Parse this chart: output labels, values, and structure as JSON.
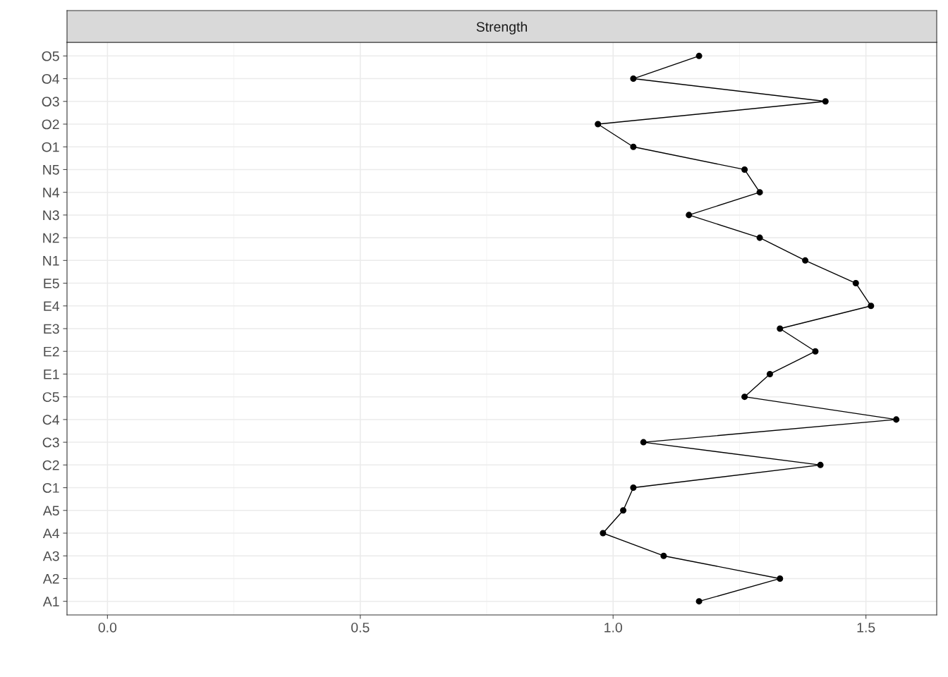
{
  "chart_data": {
    "type": "line",
    "title": "Strength",
    "orientation": "horizontal",
    "categories": [
      "O5",
      "O4",
      "O3",
      "O2",
      "O1",
      "N5",
      "N4",
      "N3",
      "N2",
      "N1",
      "E5",
      "E4",
      "E3",
      "E2",
      "E1",
      "C5",
      "C4",
      "C3",
      "C2",
      "C1",
      "A5",
      "A4",
      "A3",
      "A2",
      "A1"
    ],
    "series": [
      {
        "color": "#000000",
        "values": [
          1.17,
          1.04,
          1.42,
          0.97,
          1.04,
          1.26,
          1.29,
          1.15,
          1.29,
          1.38,
          1.48,
          1.51,
          1.33,
          1.4,
          1.31,
          1.26,
          1.56,
          1.06,
          1.41,
          1.04,
          1.02,
          0.98,
          1.1,
          1.33,
          1.17
        ]
      }
    ],
    "xlim": [
      -0.08,
      1.64
    ],
    "xticks": [
      {
        "value": 0,
        "label": "0.0"
      },
      0.5,
      {
        "value": 1,
        "label": "1.0"
      },
      1.5
    ],
    "grid": true,
    "marker": "circle",
    "line_style": "solid"
  }
}
